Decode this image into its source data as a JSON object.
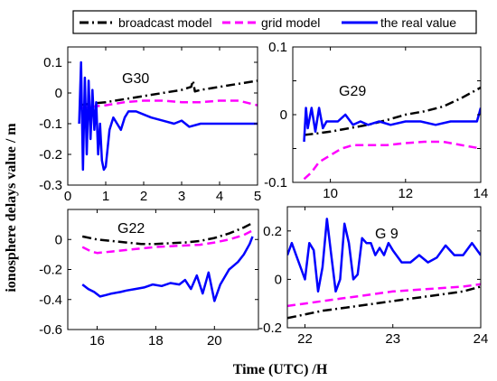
{
  "figure": {
    "ylabel": "ionosphere delays value / m",
    "xlabel": "Time (UTC) /H"
  },
  "legend": [
    {
      "label": "broadcast model",
      "color": "#000000",
      "dash": "dashdot"
    },
    {
      "label": "grid model",
      "color": "#ff00ff",
      "dash": "dash"
    },
    {
      "label": "the real value",
      "color": "#0000ff",
      "dash": "solid"
    }
  ],
  "chart_data": [
    {
      "type": "line",
      "title": "G30",
      "xlim": [
        0,
        5
      ],
      "ylim": [
        -0.3,
        0.15
      ],
      "xticks": [
        0,
        1,
        2,
        3,
        4,
        5
      ],
      "xtick_labels": [
        "0",
        "1",
        "2",
        "3",
        "4",
        "5"
      ],
      "yticks": [
        -0.3,
        -0.2,
        -0.1,
        0,
        0.1
      ],
      "ytick_labels": [
        "-0.3",
        "-0.2",
        "-0.1",
        "0",
        "0.1"
      ],
      "series": [
        {
          "name": "broadcast model",
          "x": [
            0.3,
            0.6,
            1.0,
            1.5,
            2.0,
            2.5,
            3.0,
            3.25,
            3.3,
            3.35,
            3.5,
            4.0,
            4.5,
            5.0
          ],
          "y": [
            -0.04,
            -0.035,
            -0.03,
            -0.02,
            -0.01,
            0.0,
            0.01,
            0.02,
            0.04,
            0.005,
            0.01,
            0.02,
            0.03,
            0.04
          ]
        },
        {
          "name": "grid model",
          "x": [
            0.3,
            0.6,
            1.0,
            1.5,
            2.0,
            2.5,
            3.0,
            3.5,
            4.0,
            4.5,
            5.0
          ],
          "y": [
            -0.05,
            -0.045,
            -0.04,
            -0.03,
            -0.025,
            -0.025,
            -0.03,
            -0.03,
            -0.025,
            -0.025,
            -0.04
          ]
        },
        {
          "name": "the real value",
          "x": [
            0.3,
            0.35,
            0.4,
            0.45,
            0.5,
            0.55,
            0.6,
            0.65,
            0.7,
            0.75,
            0.8,
            0.85,
            0.9,
            0.95,
            1.0,
            1.05,
            1.1,
            1.2,
            1.3,
            1.4,
            1.5,
            1.6,
            1.8,
            2.0,
            2.2,
            2.5,
            2.8,
            3.0,
            3.2,
            3.5,
            4.0,
            4.5,
            5.0
          ],
          "y": [
            -0.1,
            0.1,
            -0.25,
            0.05,
            -0.2,
            0.04,
            -0.15,
            0.01,
            -0.12,
            -0.03,
            -0.2,
            -0.1,
            -0.22,
            -0.25,
            -0.24,
            -0.18,
            -0.12,
            -0.08,
            -0.1,
            -0.12,
            -0.08,
            -0.06,
            -0.06,
            -0.07,
            -0.08,
            -0.09,
            -0.1,
            -0.09,
            -0.11,
            -0.1,
            -0.1,
            -0.1,
            -0.1
          ]
        }
      ]
    },
    {
      "type": "line",
      "title": "G29",
      "xlim": [
        9,
        14
      ],
      "ylim": [
        -0.1,
        0.1
      ],
      "xticks": [
        10,
        12,
        14
      ],
      "xtick_labels": [
        "10",
        "12",
        "14"
      ],
      "yticks": [
        -0.1,
        -0.05,
        0,
        0.05,
        0.1
      ],
      "ytick_labels": [
        "-0.1",
        "",
        "0",
        "",
        "0.1"
      ],
      "series": [
        {
          "name": "broadcast model",
          "x": [
            9.3,
            9.6,
            10.0,
            10.5,
            11.0,
            11.5,
            12.0,
            12.5,
            13.0,
            13.5,
            14.0
          ],
          "y": [
            -0.03,
            -0.028,
            -0.025,
            -0.02,
            -0.015,
            -0.008,
            0.0,
            0.005,
            0.012,
            0.025,
            0.04
          ]
        },
        {
          "name": "grid model",
          "x": [
            9.3,
            9.5,
            9.7,
            10.0,
            10.3,
            10.6,
            11.0,
            11.5,
            12.0,
            12.5,
            13.0,
            13.5,
            14.0
          ],
          "y": [
            -0.095,
            -0.085,
            -0.07,
            -0.06,
            -0.05,
            -0.045,
            -0.045,
            -0.045,
            -0.042,
            -0.04,
            -0.04,
            -0.045,
            -0.05
          ]
        },
        {
          "name": "the real value",
          "x": [
            9.3,
            9.35,
            9.4,
            9.5,
            9.6,
            9.7,
            9.8,
            9.9,
            10.0,
            10.2,
            10.4,
            10.6,
            10.8,
            11.0,
            11.3,
            11.6,
            12.0,
            12.4,
            12.8,
            13.2,
            13.6,
            13.9,
            14.0
          ],
          "y": [
            -0.04,
            0.01,
            -0.02,
            0.01,
            -0.025,
            0.01,
            -0.02,
            -0.01,
            -0.01,
            -0.01,
            0.0,
            -0.015,
            -0.01,
            -0.015,
            -0.01,
            -0.015,
            -0.01,
            -0.01,
            -0.015,
            -0.01,
            -0.01,
            -0.01,
            0.01
          ]
        }
      ]
    },
    {
      "type": "line",
      "title": "G22",
      "xlim": [
        15,
        21.5
      ],
      "ylim": [
        -0.6,
        0.2
      ],
      "xticks": [
        16,
        18,
        20
      ],
      "xtick_labels": [
        "16",
        "18",
        "20"
      ],
      "yticks": [
        -0.6,
        -0.4,
        -0.2,
        0
      ],
      "ytick_labels": [
        "-0.6",
        "-0.4",
        "-0.2",
        "0"
      ],
      "series": [
        {
          "name": "broadcast model",
          "x": [
            15.5,
            16.0,
            16.5,
            17.0,
            17.5,
            18.0,
            18.5,
            19.0,
            19.5,
            20.0,
            20.5,
            21.0,
            21.3
          ],
          "y": [
            0.02,
            0.0,
            -0.01,
            -0.02,
            -0.03,
            -0.03,
            -0.025,
            -0.02,
            -0.01,
            0.01,
            0.04,
            0.08,
            0.11
          ]
        },
        {
          "name": "grid model",
          "x": [
            15.5,
            15.8,
            16.0,
            16.5,
            17.0,
            17.5,
            18.0,
            18.5,
            19.0,
            19.5,
            20.0,
            20.5,
            21.0,
            21.3
          ],
          "y": [
            -0.05,
            -0.08,
            -0.09,
            -0.08,
            -0.07,
            -0.06,
            -0.05,
            -0.045,
            -0.04,
            -0.035,
            -0.02,
            0.0,
            0.03,
            0.06
          ]
        },
        {
          "name": "the real value",
          "x": [
            15.5,
            15.7,
            15.9,
            16.1,
            16.3,
            16.5,
            16.8,
            17.0,
            17.3,
            17.6,
            17.9,
            18.2,
            18.5,
            18.8,
            19.0,
            19.2,
            19.4,
            19.6,
            19.8,
            20.0,
            20.2,
            20.5,
            20.8,
            21.0,
            21.2,
            21.3
          ],
          "y": [
            -0.3,
            -0.33,
            -0.35,
            -0.38,
            -0.37,
            -0.36,
            -0.35,
            -0.34,
            -0.33,
            -0.32,
            -0.3,
            -0.31,
            -0.29,
            -0.3,
            -0.27,
            -0.33,
            -0.24,
            -0.36,
            -0.22,
            -0.41,
            -0.3,
            -0.2,
            -0.15,
            -0.1,
            -0.03,
            0.02
          ]
        }
      ]
    },
    {
      "type": "line",
      "title": "G 9",
      "xlim": [
        21.8,
        24
      ],
      "ylim": [
        -0.2,
        0.3
      ],
      "xticks": [
        22,
        23,
        24
      ],
      "xtick_labels": [
        "22",
        "23",
        "24"
      ],
      "yticks": [
        -0.2,
        0,
        0.2
      ],
      "ytick_labels": [
        "-0.2",
        "0",
        "0.2"
      ],
      "series": [
        {
          "name": "broadcast model",
          "x": [
            21.8,
            22.0,
            22.2,
            22.4,
            22.6,
            22.8,
            23.0,
            23.2,
            23.4,
            23.6,
            23.8,
            24.0
          ],
          "y": [
            -0.16,
            -0.145,
            -0.13,
            -0.12,
            -0.11,
            -0.1,
            -0.09,
            -0.08,
            -0.07,
            -0.06,
            -0.05,
            -0.03
          ]
        },
        {
          "name": "grid model",
          "x": [
            21.8,
            22.0,
            22.2,
            22.4,
            22.6,
            22.8,
            23.0,
            23.2,
            23.4,
            23.6,
            23.8,
            24.0
          ],
          "y": [
            -0.11,
            -0.1,
            -0.09,
            -0.08,
            -0.07,
            -0.06,
            -0.05,
            -0.045,
            -0.04,
            -0.035,
            -0.03,
            -0.02
          ]
        },
        {
          "name": "the real value",
          "x": [
            21.8,
            21.85,
            21.9,
            21.95,
            22.0,
            22.05,
            22.1,
            22.15,
            22.2,
            22.25,
            22.3,
            22.35,
            22.4,
            22.45,
            22.5,
            22.55,
            22.6,
            22.65,
            22.7,
            22.75,
            22.8,
            22.85,
            22.9,
            22.95,
            23.0,
            23.1,
            23.2,
            23.3,
            23.4,
            23.5,
            23.6,
            23.7,
            23.8,
            23.9,
            24.0
          ],
          "y": [
            0.1,
            0.15,
            0.1,
            0.05,
            0.0,
            0.15,
            0.12,
            -0.05,
            0.05,
            0.25,
            0.1,
            -0.05,
            0.0,
            0.23,
            0.15,
            0.0,
            0.02,
            0.17,
            0.15,
            0.15,
            0.1,
            0.13,
            0.1,
            0.15,
            0.12,
            0.07,
            0.07,
            0.1,
            0.07,
            0.09,
            0.14,
            0.1,
            0.1,
            0.15,
            0.1
          ]
        }
      ]
    }
  ]
}
